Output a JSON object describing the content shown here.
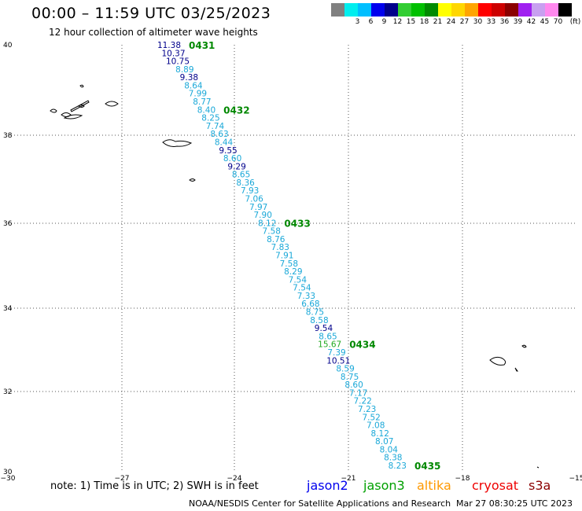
{
  "header": {
    "title": "00:00 – 11:59 UTC 03/25/2023",
    "subtitle": "12 hour collection of altimeter wave heights"
  },
  "color_scale": {
    "unit": "(ft)",
    "swatches": [
      {
        "label": "",
        "color": "#808080"
      },
      {
        "label": "3",
        "color": "#00eeee"
      },
      {
        "label": "6",
        "color": "#00bfff"
      },
      {
        "label": "9",
        "color": "#0000ee"
      },
      {
        "label": "12",
        "color": "#00008b"
      },
      {
        "label": "15",
        "color": "#32cd32"
      },
      {
        "label": "18",
        "color": "#00c000"
      },
      {
        "label": "21",
        "color": "#008b00"
      },
      {
        "label": "24",
        "color": "#ffff00"
      },
      {
        "label": "27",
        "color": "#ffd700"
      },
      {
        "label": "30",
        "color": "#ffa500"
      },
      {
        "label": "33",
        "color": "#ff0000"
      },
      {
        "label": "36",
        "color": "#cd0000"
      },
      {
        "label": "39",
        "color": "#8b0000"
      },
      {
        "label": "42",
        "color": "#a020f0"
      },
      {
        "label": "45",
        "color": "#c8a0f0"
      },
      {
        "label": "70",
        "color": "#ff88ee"
      },
      {
        "label": "",
        "color": "#000000"
      }
    ]
  },
  "map": {
    "lat_ticks": [
      "40",
      "38",
      "36",
      "34",
      "32",
      "30"
    ],
    "lon_ticks": [
      "−30",
      "−27",
      "−24",
      "−21",
      "−18",
      "−15"
    ],
    "colors": {
      "cyan": "#1aa8d8",
      "blue": "#0000cc",
      "navy": "#00008b",
      "green": "#22aa22",
      "pass": "#008800"
    },
    "observations": [
      {
        "value": "11.38",
        "color": "navy"
      },
      {
        "value": "10.37",
        "color": "navy"
      },
      {
        "value": "10.75",
        "color": "navy"
      },
      {
        "value": "8.89",
        "color": "cyan"
      },
      {
        "value": "9.38",
        "color": "navy"
      },
      {
        "value": "8.64",
        "color": "cyan"
      },
      {
        "value": "7.99",
        "color": "cyan"
      },
      {
        "value": "8.77",
        "color": "cyan"
      },
      {
        "value": "8.40",
        "color": "cyan"
      },
      {
        "value": "8.25",
        "color": "cyan"
      },
      {
        "value": "7.74",
        "color": "cyan"
      },
      {
        "value": "8.63",
        "color": "cyan"
      },
      {
        "value": "8.44",
        "color": "cyan"
      },
      {
        "value": "9.55",
        "color": "navy"
      },
      {
        "value": "8.60",
        "color": "cyan"
      },
      {
        "value": "9.29",
        "color": "navy"
      },
      {
        "value": "8.65",
        "color": "cyan"
      },
      {
        "value": "8.36",
        "color": "cyan"
      },
      {
        "value": "7.93",
        "color": "cyan"
      },
      {
        "value": "7.06",
        "color": "cyan"
      },
      {
        "value": "7.97",
        "color": "cyan"
      },
      {
        "value": "7.90",
        "color": "cyan"
      },
      {
        "value": "8.12",
        "color": "cyan"
      },
      {
        "value": "7.58",
        "color": "cyan"
      },
      {
        "value": "8.76",
        "color": "cyan"
      },
      {
        "value": "7.83",
        "color": "cyan"
      },
      {
        "value": "7.91",
        "color": "cyan"
      },
      {
        "value": "7.58",
        "color": "cyan"
      },
      {
        "value": "8.29",
        "color": "cyan"
      },
      {
        "value": "7.54",
        "color": "cyan"
      },
      {
        "value": "7.54",
        "color": "cyan"
      },
      {
        "value": "7.33",
        "color": "cyan"
      },
      {
        "value": "6.68",
        "color": "cyan"
      },
      {
        "value": "8.75",
        "color": "cyan"
      },
      {
        "value": "8.58",
        "color": "cyan"
      },
      {
        "value": "9.54",
        "color": "navy"
      },
      {
        "value": "8.65",
        "color": "cyan"
      },
      {
        "value": "15.67",
        "color": "green"
      },
      {
        "value": "7.39",
        "color": "cyan"
      },
      {
        "value": "10.51",
        "color": "navy"
      },
      {
        "value": "8.59",
        "color": "cyan"
      },
      {
        "value": "8.75",
        "color": "cyan"
      },
      {
        "value": "8.60",
        "color": "cyan"
      },
      {
        "value": "7.17",
        "color": "cyan"
      },
      {
        "value": "7.22",
        "color": "cyan"
      },
      {
        "value": "7.23",
        "color": "cyan"
      },
      {
        "value": "7.52",
        "color": "cyan"
      },
      {
        "value": "7.08",
        "color": "cyan"
      },
      {
        "value": "8.12",
        "color": "cyan"
      },
      {
        "value": "8.07",
        "color": "cyan"
      },
      {
        "value": "8.04",
        "color": "cyan"
      },
      {
        "value": "8.38",
        "color": "cyan"
      },
      {
        "value": "8.23",
        "color": "cyan"
      }
    ],
    "pass_times": [
      {
        "label": "0431",
        "at_index": 0
      },
      {
        "label": "0432",
        "at_index": 8
      },
      {
        "label": "0433",
        "at_index": 22
      },
      {
        "label": "0434",
        "at_index": 37
      },
      {
        "label": "0435",
        "at_index": 52
      }
    ]
  },
  "footer": {
    "note": "note: 1) Time is in UTC; 2) SWH is in feet",
    "satellites": [
      {
        "name": "jason2",
        "color": "#0000ee"
      },
      {
        "name": "jason3",
        "color": "#00a000"
      },
      {
        "name": "altika",
        "color": "#ff9900"
      },
      {
        "name": "cryosat",
        "color": "#ee0000"
      },
      {
        "name": "s3a",
        "color": "#8b0000"
      }
    ],
    "credit": "NOAA/NESDIS Center for Satellite Applications and Research",
    "timestamp": "Mar 27 08:30:25 UTC 2023"
  }
}
